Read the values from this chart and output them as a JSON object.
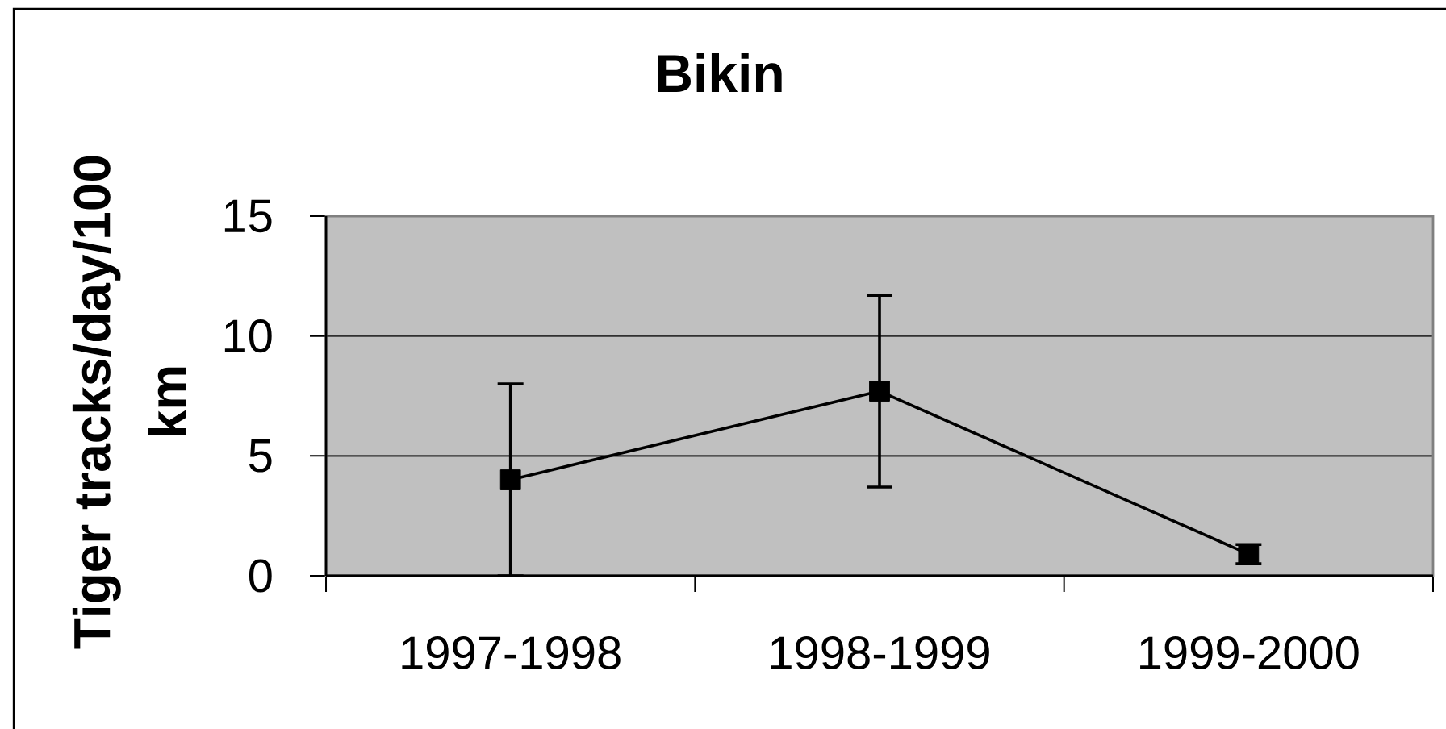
{
  "chart_data": {
    "type": "line",
    "title": "Bikin",
    "ylabel": "Tiger tracks/day/100 km",
    "categories": [
      "1997-1998",
      "1998-1999",
      "1999-2000"
    ],
    "series": [
      {
        "color": "#000000",
        "values": [
          4.0,
          7.7,
          0.9
        ],
        "errors": [
          4.0,
          4.0,
          0.4
        ]
      }
    ],
    "ylim": [
      0,
      15
    ],
    "yticks": [
      0,
      5,
      10,
      15
    ],
    "grid": "y",
    "marker": "square",
    "line_style": "solid"
  }
}
